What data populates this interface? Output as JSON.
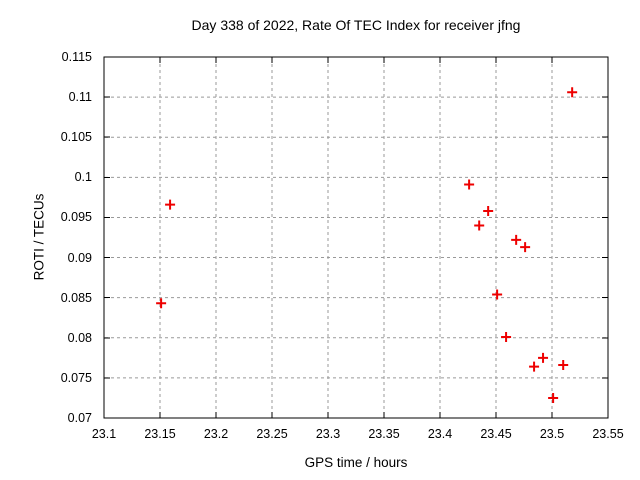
{
  "chart_data": {
    "type": "scatter",
    "title": "Day 338 of 2022, Rate Of TEC Index for receiver jfng",
    "xlabel": "GPS time / hours",
    "ylabel": "ROTI / TECUs",
    "xlim": [
      23.1,
      23.55
    ],
    "ylim": [
      0.07,
      0.115
    ],
    "xticks": {
      "values": [
        23.1,
        23.15,
        23.2,
        23.25,
        23.3,
        23.35,
        23.4,
        23.45,
        23.5,
        23.55
      ],
      "labels": [
        "23.1",
        "23.15",
        "23.2",
        "23.25",
        "23.3",
        "23.35",
        "23.4",
        "23.45",
        "23.5",
        "23.55"
      ]
    },
    "yticks": {
      "values": [
        0.07,
        0.075,
        0.08,
        0.085,
        0.09,
        0.095,
        0.1,
        0.105,
        0.11,
        0.115
      ],
      "labels": [
        "0.07",
        "0.075",
        "0.08",
        "0.085",
        "0.09",
        "0.095",
        "0.1",
        "0.105",
        "0.11",
        "0.115"
      ]
    },
    "grid": true,
    "legend": "none",
    "marker": "plus",
    "colors": {
      "marker": "#ee0000",
      "grid": "#999999",
      "border": "#000000",
      "background": "#ffffff"
    },
    "points": [
      [
        23.151,
        0.0843
      ],
      [
        23.159,
        0.0966
      ],
      [
        23.426,
        0.0991
      ],
      [
        23.435,
        0.094
      ],
      [
        23.443,
        0.0958
      ],
      [
        23.451,
        0.0854
      ],
      [
        23.459,
        0.0801
      ],
      [
        23.468,
        0.0922
      ],
      [
        23.476,
        0.0913
      ],
      [
        23.484,
        0.0764
      ],
      [
        23.492,
        0.0775
      ],
      [
        23.501,
        0.0725
      ],
      [
        23.51,
        0.0766
      ],
      [
        23.518,
        0.1106
      ]
    ]
  }
}
